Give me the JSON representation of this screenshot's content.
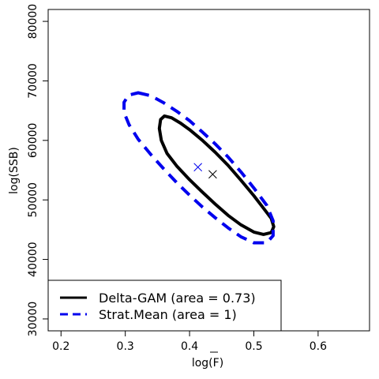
{
  "chart_data": {
    "type": "scatter",
    "xlabel": "log(F)",
    "xlabel_overline_part": "F",
    "ylabel": "log(SSB)",
    "xlim": [
      0.18,
      0.68
    ],
    "ylim": [
      28000,
      82000
    ],
    "x_ticks": [
      {
        "value": 0.2,
        "label": "0.2"
      },
      {
        "value": 0.3,
        "label": "0.3"
      },
      {
        "value": 0.4,
        "label": "0.4"
      },
      {
        "value": 0.5,
        "label": "0.5"
      },
      {
        "value": 0.6,
        "label": "0.6"
      }
    ],
    "y_ticks": [
      {
        "value": 30000,
        "label": "30000"
      },
      {
        "value": 40000,
        "label": "40000"
      },
      {
        "value": 50000,
        "label": "50000"
      },
      {
        "value": 60000,
        "label": "60000"
      },
      {
        "value": 70000,
        "label": "70000"
      },
      {
        "value": 80000,
        "label": "80000"
      }
    ],
    "series": [
      {
        "name": "Delta-GAM (area = 0.73)",
        "color": "#000000",
        "dash": "solid",
        "center": [
          0.436,
          54300
        ],
        "ellipse": [
          [
            0.361,
            64100
          ],
          [
            0.372,
            63800
          ],
          [
            0.386,
            62900
          ],
          [
            0.4,
            61800
          ],
          [
            0.42,
            60000
          ],
          [
            0.44,
            58000
          ],
          [
            0.46,
            55800
          ],
          [
            0.48,
            53300
          ],
          [
            0.5,
            50700
          ],
          [
            0.515,
            48600
          ],
          [
            0.527,
            46900
          ],
          [
            0.531,
            45500
          ],
          [
            0.527,
            44500
          ],
          [
            0.515,
            44200
          ],
          [
            0.5,
            44600
          ],
          [
            0.48,
            45800
          ],
          [
            0.46,
            47400
          ],
          [
            0.44,
            49300
          ],
          [
            0.42,
            51300
          ],
          [
            0.4,
            53400
          ],
          [
            0.38,
            55700
          ],
          [
            0.365,
            57800
          ],
          [
            0.356,
            60000
          ],
          [
            0.353,
            62000
          ],
          [
            0.355,
            63500
          ]
        ]
      },
      {
        "name": "Strat.Mean (area = 1)",
        "color": "#0000ee",
        "dash": "dashed",
        "center": [
          0.413,
          55500
        ],
        "ellipse": [
          [
            0.32,
            68000
          ],
          [
            0.34,
            67500
          ],
          [
            0.36,
            66300
          ],
          [
            0.38,
            64900
          ],
          [
            0.4,
            63300
          ],
          [
            0.42,
            61400
          ],
          [
            0.44,
            59400
          ],
          [
            0.46,
            57200
          ],
          [
            0.48,
            54700
          ],
          [
            0.5,
            52000
          ],
          [
            0.52,
            49100
          ],
          [
            0.53,
            46500
          ],
          [
            0.53,
            44000
          ],
          [
            0.52,
            42800
          ],
          [
            0.5,
            42800
          ],
          [
            0.48,
            43800
          ],
          [
            0.46,
            45300
          ],
          [
            0.44,
            47000
          ],
          [
            0.42,
            48800
          ],
          [
            0.4,
            50800
          ],
          [
            0.38,
            52900
          ],
          [
            0.36,
            55200
          ],
          [
            0.34,
            57600
          ],
          [
            0.32,
            60200
          ],
          [
            0.306,
            62600
          ],
          [
            0.298,
            64700
          ],
          [
            0.298,
            66400
          ],
          [
            0.305,
            67600
          ]
        ]
      }
    ],
    "legend": {
      "placement": "bottom-left"
    },
    "grid": false
  }
}
